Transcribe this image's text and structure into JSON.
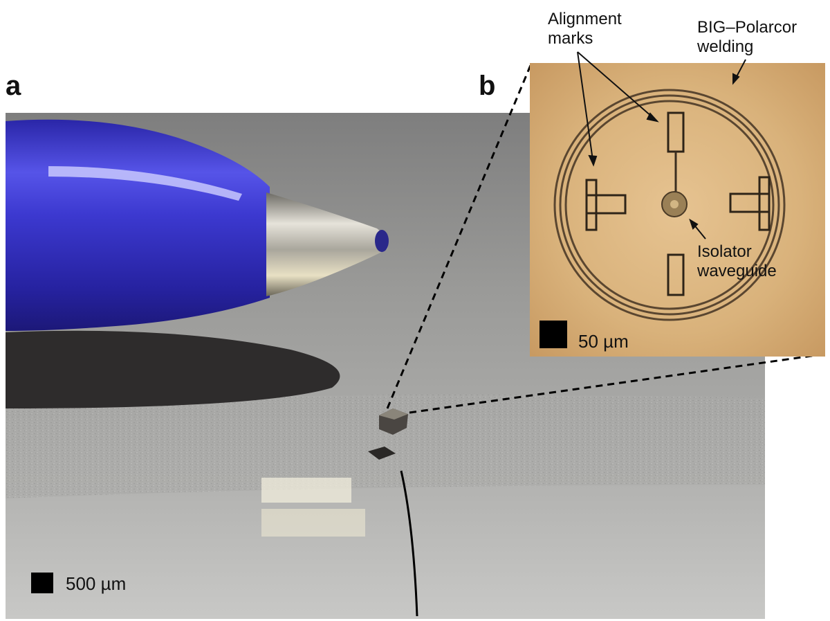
{
  "panel_a": {
    "letter": "a",
    "scale_bar": {
      "label": "500 µm"
    }
  },
  "panel_b": {
    "letter": "b",
    "annotations": {
      "alignment_marks": [
        "Alignment",
        "marks"
      ],
      "welding": [
        "BIG–Polarcor",
        "welding"
      ],
      "isolator": [
        "Isolator",
        "waveguide"
      ]
    },
    "scale_bar": {
      "label": "50 µm"
    }
  },
  "colors": {
    "pen_body": "#3b3ad0",
    "pen_tip": "#b8b4a8",
    "surface": "#9a9a9a",
    "micrograph_bg": "#d8b07a",
    "ring": "#5a4630"
  }
}
